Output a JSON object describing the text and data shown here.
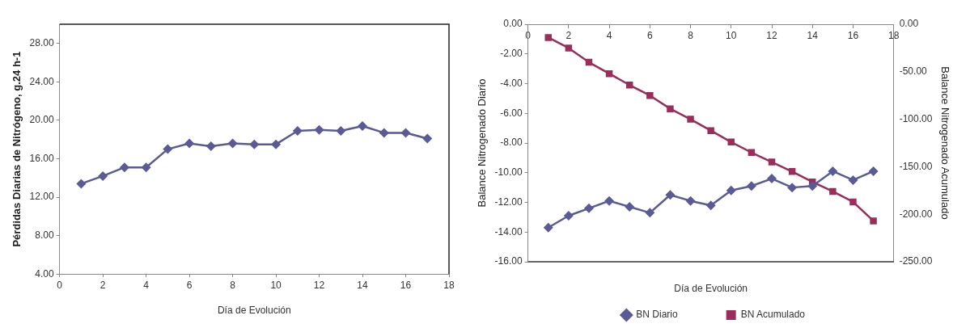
{
  "chart_data": [
    {
      "type": "line",
      "xlabel": "Día de Evolución",
      "ylabel": "Pérdidas Diarias de Nitrógeno, g.24 h-1",
      "x": [
        1,
        2,
        3,
        4,
        5,
        6,
        7,
        8,
        9,
        10,
        11,
        12,
        13,
        14,
        15,
        16,
        17
      ],
      "series": [
        {
          "color": "#5a5a96",
          "values": [
            13.4,
            14.2,
            15.1,
            15.1,
            17.0,
            17.6,
            17.3,
            17.6,
            17.5,
            17.5,
            18.9,
            19.0,
            18.9,
            19.4,
            18.7,
            18.7,
            18.1
          ]
        }
      ],
      "xlim": [
        0,
        18
      ],
      "xticks": [
        0,
        2,
        4,
        6,
        8,
        10,
        12,
        14,
        16,
        18
      ],
      "ylim": [
        4,
        30
      ],
      "yticks": [
        {
          "value": 4,
          "label": "4.00"
        },
        {
          "value": 8,
          "label": "8.00"
        },
        {
          "value": 12,
          "label": "12.00"
        },
        {
          "value": 16,
          "label": "16.00"
        },
        {
          "value": 20,
          "label": "20.00"
        },
        {
          "value": 24,
          "label": "24.00"
        },
        {
          "value": 28,
          "label": "28.00"
        }
      ],
      "grid": false,
      "legend": false,
      "marker": "diamond"
    },
    {
      "type": "line",
      "xlabel": "Día de Evolución",
      "ylabel": "Balance Nitrogenado Diario",
      "y2label": "Balance Nitrogenado Acumulado",
      "x": [
        1,
        2,
        3,
        4,
        5,
        6,
        7,
        8,
        9,
        10,
        11,
        12,
        13,
        14,
        15,
        16,
        17
      ],
      "series": [
        {
          "name": "BN Diario",
          "color": "#5a5a96",
          "marker": "diamond",
          "values": [
            -13.7,
            -12.9,
            -12.4,
            -11.9,
            -12.3,
            -12.7,
            -11.5,
            -11.9,
            -12.2,
            -11.2,
            -10.9,
            -10.4,
            -11.0,
            -10.9,
            -9.9,
            -10.5,
            -9.9
          ]
        },
        {
          "name": "BN Acumulado",
          "color": "#9b2d5b",
          "marker": "square",
          "axis": "y2",
          "values": [
            -14,
            -25,
            -40,
            -52,
            -64,
            -75,
            -89,
            -100,
            -112,
            -124,
            -135,
            -145,
            -155,
            -166,
            -176,
            -187,
            -207
          ]
        }
      ],
      "xlim": [
        0,
        18
      ],
      "xticks": [
        0,
        2,
        4,
        6,
        8,
        10,
        12,
        14,
        16,
        18
      ],
      "ylim": [
        -16,
        0
      ],
      "yticks": [
        {
          "value": -16,
          "label": "-16.00"
        },
        {
          "value": -14,
          "label": "-14.00"
        },
        {
          "value": -12,
          "label": "-12.00"
        },
        {
          "value": -10,
          "label": "-10.00"
        },
        {
          "value": -8,
          "label": "-8.00"
        },
        {
          "value": -6,
          "label": "-6.00"
        },
        {
          "value": -4,
          "label": "-4.00"
        },
        {
          "value": -2,
          "label": "-2.00"
        },
        {
          "value": 0,
          "label": "0.00"
        }
      ],
      "y2lim": [
        -250,
        0
      ],
      "y2ticks": [
        {
          "value": -250,
          "label": "-250.00"
        },
        {
          "value": -200,
          "label": "-200.00"
        },
        {
          "value": -150,
          "label": "-150.00"
        },
        {
          "value": -100,
          "label": "-100.00"
        },
        {
          "value": -50,
          "label": "-50.00"
        },
        {
          "value": 0,
          "label": "0.00"
        }
      ],
      "grid": false,
      "legend": "bottom"
    }
  ]
}
